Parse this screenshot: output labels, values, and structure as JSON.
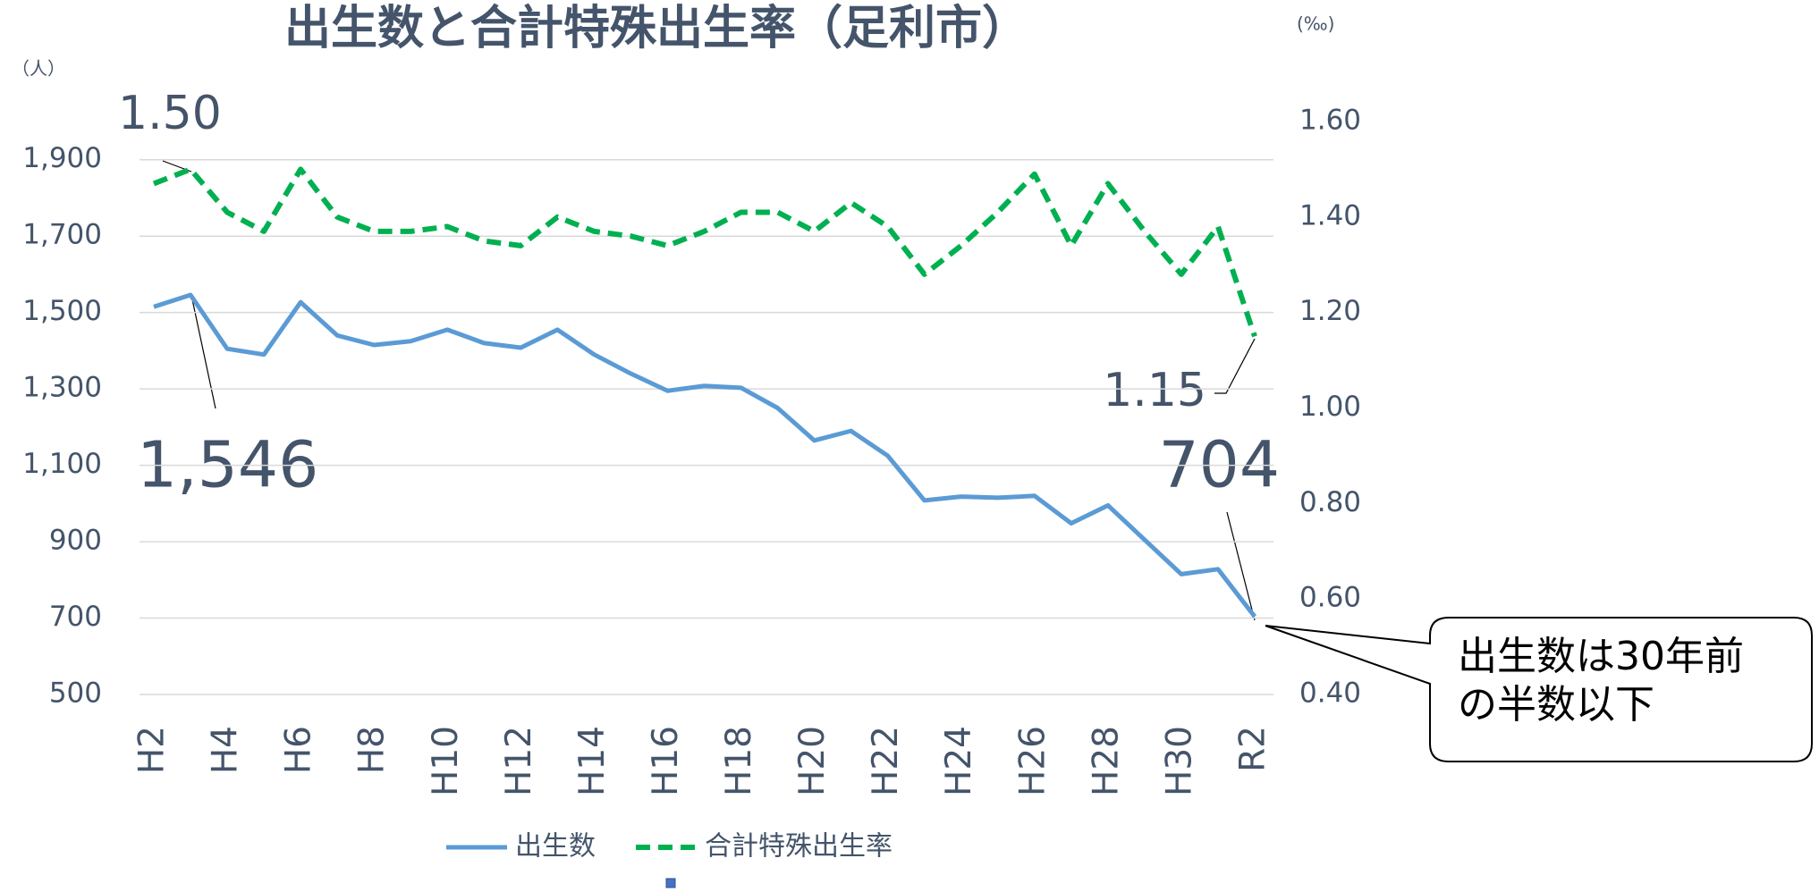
{
  "chart_data": {
    "type": "line",
    "title": "出生数と合計特殊出生率（足利市）",
    "y_unit": "（人）",
    "y2_unit": "(‰)",
    "categories": [
      "H2",
      null,
      "H4",
      null,
      "H6",
      null,
      "H8",
      null,
      "H10",
      null,
      "H12",
      null,
      "H14",
      null,
      "H16",
      null,
      "H18",
      null,
      "H20",
      null,
      "H22",
      null,
      "H24",
      null,
      "H26",
      null,
      "H28",
      null,
      "H30",
      null,
      "R2"
    ],
    "series": [
      {
        "name": "出生数",
        "color": "#5b9bd5",
        "dashed": false,
        "values": [
          1515,
          1546,
          1405,
          1390,
          1527,
          1440,
          1415,
          1425,
          1455,
          1420,
          1408,
          1455,
          1390,
          1340,
          1295,
          1308,
          1303,
          1250,
          1165,
          1190,
          1125,
          1008,
          1018,
          1015,
          1020,
          948,
          995,
          905,
          815,
          828,
          704
        ]
      },
      {
        "name": "合計特殊出生率",
        "color": "#00b050",
        "dashed": true,
        "axis": "y2",
        "values": [
          1.47,
          1.5,
          1.41,
          1.37,
          1.5,
          1.4,
          1.37,
          1.37,
          1.38,
          1.35,
          1.34,
          1.4,
          1.37,
          1.36,
          1.34,
          1.37,
          1.41,
          1.41,
          1.37,
          1.43,
          1.38,
          1.28,
          1.34,
          1.41,
          1.49,
          1.34,
          1.47,
          1.37,
          1.28,
          1.38,
          1.15
        ]
      }
    ],
    "ylim": [
      500,
      2000
    ],
    "yticks": [
      500,
      700,
      900,
      {
        "value": 1100,
        "label": "1,100"
      },
      {
        "value": 1300,
        "label": "1,300"
      },
      {
        "value": 1500,
        "label": "1,500"
      },
      {
        "value": 1700,
        "label": "1,700"
      },
      {
        "value": 1900,
        "label": "1,900"
      }
    ],
    "y2lim": [
      0.4,
      1.6
    ],
    "y2ticks": [
      {
        "value": 0.4,
        "label": "0.40"
      },
      {
        "value": 0.6,
        "label": "0.60"
      },
      {
        "value": 0.8,
        "label": "0.80"
      },
      {
        "value": 1.0,
        "label": "1.00"
      },
      {
        "value": 1.2,
        "label": "1.20"
      },
      {
        "value": 1.4,
        "label": "1.40"
      },
      {
        "value": 1.6,
        "label": "1.60"
      }
    ],
    "grid": true,
    "legend": "bottom",
    "annotations": [
      "1.50",
      "1,546",
      "1.15",
      "704"
    ],
    "callout": [
      "出生数は30年前",
      "の半数以下"
    ]
  }
}
